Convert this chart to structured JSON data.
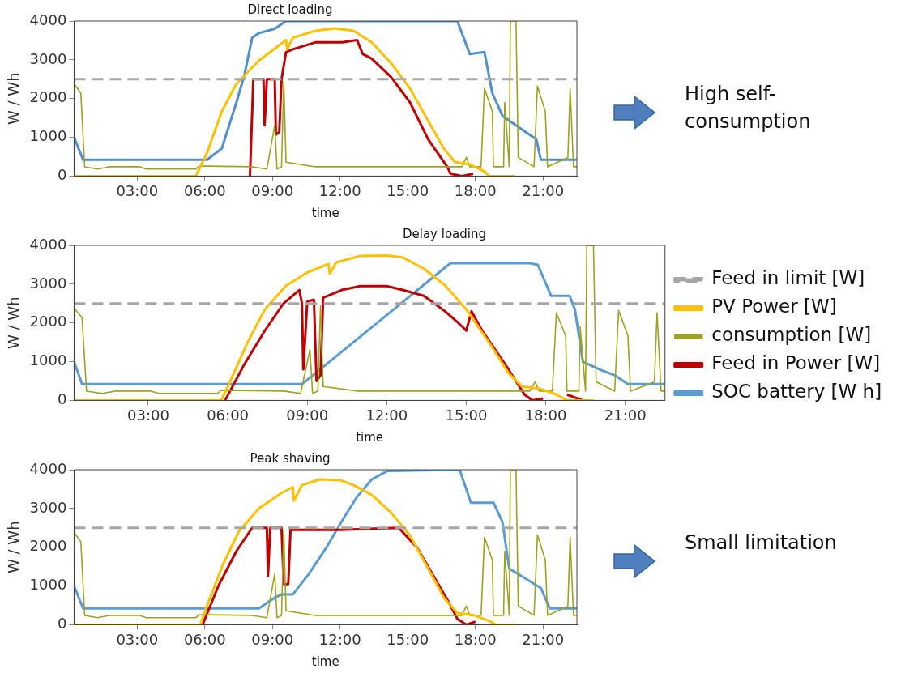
{
  "chart_data": [
    {
      "type": "line",
      "title": "Direct loading",
      "xlabel": "time",
      "ylabel": "W / Wh",
      "xlim": [
        0.2,
        22.5
      ],
      "xticks": [
        {
          "value": 3,
          "label": "03:00"
        },
        {
          "value": 6,
          "label": "06:00"
        },
        {
          "value": 9,
          "label": "09:00"
        },
        {
          "value": 12,
          "label": "12:00"
        },
        {
          "value": 15,
          "label": "15:00"
        },
        {
          "value": 18,
          "label": "18:00"
        },
        {
          "value": 21,
          "label": "21:00"
        }
      ],
      "ylim": [
        0,
        4000
      ],
      "yticks": [
        0,
        1000,
        2000,
        3000,
        4000
      ],
      "grid": false,
      "legend": false,
      "marker": "none",
      "annotations": [
        "High self-consumption"
      ],
      "series": [
        {
          "color": "#a6a6a6",
          "line_style": "dashed",
          "x": [
            0.2,
            22.5
          ],
          "values": [
            2500,
            2500
          ]
        },
        {
          "color": "#ffc000",
          "x": [
            0.2,
            5.6,
            6.1,
            6.75,
            7.4,
            8.4,
            9.6,
            9.65,
            9.9,
            10.9,
            11.75,
            12.6,
            13.4,
            14.25,
            15.1,
            15.9,
            16.6,
            17.1,
            17.75,
            18.4,
            18.6,
            19.75
          ],
          "values": [
            0,
            0,
            600,
            1670,
            2380,
            2980,
            3510,
            3270,
            3570,
            3750,
            3810,
            3750,
            3450,
            2920,
            2260,
            1430,
            710,
            360,
            300,
            120,
            0,
            0
          ]
        },
        {
          "color": "#9ea31c",
          "x": [
            0.2,
            0.5,
            0.67,
            1.25,
            1.75,
            3.1,
            3.4,
            5.6,
            5.75,
            8.1,
            8.75,
            9.1,
            9.2,
            9.4,
            9.5,
            9.6,
            10.9,
            17.4,
            17.6,
            17.75,
            18.25,
            18.4,
            18.75,
            18.8,
            19.25,
            19.3,
            19.5,
            19.55,
            19.8,
            19.9,
            20.6,
            20.75,
            21.1,
            21.2,
            22.1,
            22.2,
            22.35,
            22.5
          ],
          "values": [
            2380,
            2140,
            240,
            180,
            240,
            240,
            180,
            180,
            260,
            240,
            180,
            1310,
            180,
            240,
            2440,
            360,
            240,
            240,
            480,
            240,
            240,
            2260,
            1670,
            240,
            240,
            1900,
            240,
            4000,
            4000,
            480,
            240,
            2320,
            1670,
            240,
            480,
            2260,
            240,
            240
          ]
        },
        {
          "color": "#c00000",
          "x": [
            8.0,
            8.15,
            8.6,
            8.65,
            8.75,
            9.1,
            9.15,
            9.3,
            9.4,
            9.6,
            9.9,
            10.9,
            12.1,
            12.75,
            13.0,
            13.4,
            14.25,
            15.1,
            15.9,
            16.75,
            16.9,
            17.4,
            17.9
          ],
          "values": [
            0,
            2500,
            2500,
            1310,
            2500,
            2500,
            1070,
            1130,
            2500,
            3200,
            3270,
            3450,
            3450,
            3510,
            3150,
            3030,
            2560,
            1900,
            950,
            240,
            60,
            0,
            60
          ]
        },
        {
          "color": "#4f8fd0",
          "x": [
            0.2,
            0.6,
            6.1,
            6.75,
            7.4,
            7.75,
            8.1,
            8.4,
            9.1,
            9.6,
            17.2,
            17.75,
            18.4,
            18.75,
            19.2,
            20.1,
            20.7,
            20.9,
            22.5
          ],
          "values": [
            1000,
            420,
            420,
            710,
            1900,
            2600,
            3570,
            3690,
            3800,
            4000,
            4000,
            3150,
            3200,
            2140,
            1550,
            1190,
            950,
            420,
            420
          ]
        }
      ]
    },
    {
      "type": "line",
      "title": "Delay loading",
      "xlabel": "time",
      "ylabel": "W / Wh",
      "xlim": [
        0.2,
        22.5
      ],
      "xticks": [
        {
          "value": 3,
          "label": "03:00"
        },
        {
          "value": 6,
          "label": "06:00"
        },
        {
          "value": 9,
          "label": "09:00"
        },
        {
          "value": 12,
          "label": "12:00"
        },
        {
          "value": 15,
          "label": "15:00"
        },
        {
          "value": 18,
          "label": "18:00"
        },
        {
          "value": 21,
          "label": "21:00"
        }
      ],
      "ylim": [
        0,
        4000
      ],
      "yticks": [
        0,
        1000,
        2000,
        3000,
        4000
      ],
      "grid": false,
      "legend": "right",
      "marker": "none",
      "series": [
        {
          "name": "Feed in limit [W]",
          "color": "#a6a6a6",
          "line_style": "dashed",
          "x": [
            0.2,
            22.5
          ],
          "values": [
            2500,
            2500
          ]
        },
        {
          "name": "PV Power [W]",
          "color": "#ffc000",
          "x": [
            0.2,
            5.75,
            6.1,
            6.75,
            7.4,
            8.2,
            9.0,
            9.8,
            9.85,
            10.1,
            11,
            12,
            12.6,
            13.4,
            14.2,
            15.0,
            15.9,
            16.6,
            17.1,
            17.8,
            18.4,
            18.8,
            19.8
          ],
          "values": [
            0,
            0,
            500,
            1500,
            2350,
            2960,
            3300,
            3520,
            3270,
            3560,
            3730,
            3740,
            3690,
            3400,
            2970,
            2350,
            1450,
            700,
            360,
            300,
            150,
            0,
            0
          ]
        },
        {
          "name": "consumption [W]",
          "color": "#9ea31c",
          "x": [
            0.2,
            0.5,
            0.67,
            1.25,
            1.75,
            3.1,
            3.4,
            5.6,
            5.75,
            8.1,
            8.75,
            9.1,
            9.2,
            9.4,
            9.5,
            9.6,
            10.9,
            17.4,
            17.6,
            17.75,
            18.25,
            18.4,
            18.75,
            18.8,
            19.25,
            19.3,
            19.5,
            19.55,
            19.8,
            19.9,
            20.6,
            20.75,
            21.1,
            21.2,
            22.1,
            22.2,
            22.35,
            22.5
          ],
          "values": [
            2380,
            2140,
            240,
            180,
            240,
            240,
            180,
            180,
            260,
            240,
            180,
            1310,
            180,
            240,
            2440,
            360,
            240,
            240,
            480,
            240,
            240,
            2260,
            1670,
            240,
            240,
            1900,
            240,
            4000,
            4000,
            480,
            240,
            2320,
            1670,
            240,
            480,
            2260,
            240,
            240
          ]
        },
        {
          "name": "Feed in Power [W]",
          "color": "#c00000",
          "x": [
            5.9,
            6.6,
            7.4,
            8.1,
            8.7,
            8.8,
            8.85,
            9.0,
            9.25,
            9.35,
            9.5,
            9.6,
            10.3,
            11,
            12,
            12.6,
            13.4,
            14.2,
            14.7,
            15.0,
            15.2,
            15.6,
            16.5,
            17.2,
            17.5,
            17.9,
            18.3,
            18.8,
            19.4
          ],
          "values": [
            0,
            900,
            1800,
            2500,
            2850,
            2500,
            800,
            2550,
            2600,
            500,
            650,
            2650,
            2850,
            2950,
            2950,
            2850,
            2700,
            2300,
            2000,
            1800,
            2300,
            1800,
            900,
            150,
            0,
            50,
            null,
            150,
            0
          ]
        },
        {
          "name": "SOC battery [W h]",
          "color": "#5b9bd5",
          "x": [
            0.2,
            0.5,
            8.8,
            14.4,
            17.4,
            17.7,
            18.2,
            18.9,
            19.1,
            19.4,
            20.1,
            20.6,
            21.1,
            22.5
          ],
          "values": [
            1000,
            420,
            420,
            3540,
            3540,
            3500,
            2700,
            2700,
            2350,
            1000,
            780,
            650,
            420,
            420
          ]
        }
      ]
    },
    {
      "type": "line",
      "title": "Peak shaving",
      "xlabel": "time",
      "ylabel": "W / Wh",
      "xlim": [
        0.2,
        22.5
      ],
      "xticks": [
        {
          "value": 3,
          "label": "03:00"
        },
        {
          "value": 6,
          "label": "06:00"
        },
        {
          "value": 9,
          "label": "09:00"
        },
        {
          "value": 12,
          "label": "12:00"
        },
        {
          "value": 15,
          "label": "15:00"
        },
        {
          "value": 18,
          "label": "18:00"
        },
        {
          "value": 21,
          "label": "21:00"
        }
      ],
      "ylim": [
        0,
        4000
      ],
      "yticks": [
        0,
        1000,
        2000,
        3000,
        4000
      ],
      "grid": false,
      "legend": false,
      "marker": "none",
      "annotations": [
        "Small limitation"
      ],
      "series": [
        {
          "color": "#a6a6a6",
          "line_style": "dashed",
          "x": [
            0.2,
            22.5
          ],
          "values": [
            2500,
            2500
          ]
        },
        {
          "color": "#ffc000",
          "x": [
            0.2,
            5.8,
            6.1,
            6.8,
            7.5,
            8.4,
            9.4,
            9.9,
            9.95,
            10.3,
            11.1,
            12,
            12.6,
            13.4,
            14.25,
            15.1,
            15.9,
            16.6,
            17.2,
            17.9,
            18.6,
            18.9,
            19.75
          ],
          "values": [
            0,
            0,
            500,
            1550,
            2400,
            3000,
            3400,
            3550,
            3200,
            3600,
            3750,
            3730,
            3600,
            3350,
            2900,
            2300,
            1450,
            700,
            300,
            250,
            100,
            0,
            0
          ]
        },
        {
          "color": "#9ea31c",
          "x": [
            0.2,
            0.5,
            0.67,
            1.25,
            1.75,
            3.1,
            3.4,
            5.6,
            5.75,
            8.1,
            8.75,
            9.1,
            9.2,
            9.4,
            9.5,
            9.6,
            10.9,
            17.4,
            17.6,
            17.75,
            18.25,
            18.4,
            18.75,
            18.8,
            19.25,
            19.3,
            19.5,
            19.55,
            19.8,
            19.9,
            20.6,
            20.75,
            21.1,
            21.2,
            22.1,
            22.2,
            22.35,
            22.5
          ],
          "values": [
            2380,
            2140,
            240,
            180,
            240,
            240,
            180,
            180,
            260,
            240,
            180,
            1310,
            180,
            240,
            2440,
            360,
            240,
            240,
            480,
            240,
            240,
            2260,
            1670,
            240,
            240,
            1900,
            240,
            4000,
            4000,
            480,
            240,
            2320,
            1670,
            240,
            480,
            2260,
            240,
            240
          ]
        },
        {
          "color": "#c00000",
          "x": [
            5.9,
            6.6,
            7.4,
            8.1,
            8.75,
            8.8,
            8.9,
            9.4,
            9.5,
            9.7,
            9.8,
            12,
            14.6,
            15.4,
            16.2,
            16.8,
            17.2,
            17.6,
            18
          ],
          "values": [
            0,
            1000,
            1900,
            2500,
            2500,
            1250,
            2500,
            2500,
            1050,
            1050,
            2450,
            2450,
            2500,
            2000,
            1200,
            600,
            150,
            0,
            80
          ]
        },
        {
          "color": "#5b9bd5",
          "x": [
            0.2,
            0.6,
            8.4,
            9.1,
            9.4,
            9.9,
            10.6,
            11.4,
            12.1,
            12.75,
            13.4,
            14.1,
            17.3,
            17.8,
            18.8,
            19.2,
            19.5,
            20.2,
            20.9,
            21.3,
            22.5
          ],
          "values": [
            1000,
            420,
            420,
            700,
            780,
            780,
            1300,
            2000,
            2700,
            3300,
            3750,
            3970,
            4000,
            3150,
            3150,
            2650,
            1450,
            1200,
            950,
            420,
            420
          ]
        }
      ]
    }
  ]
}
